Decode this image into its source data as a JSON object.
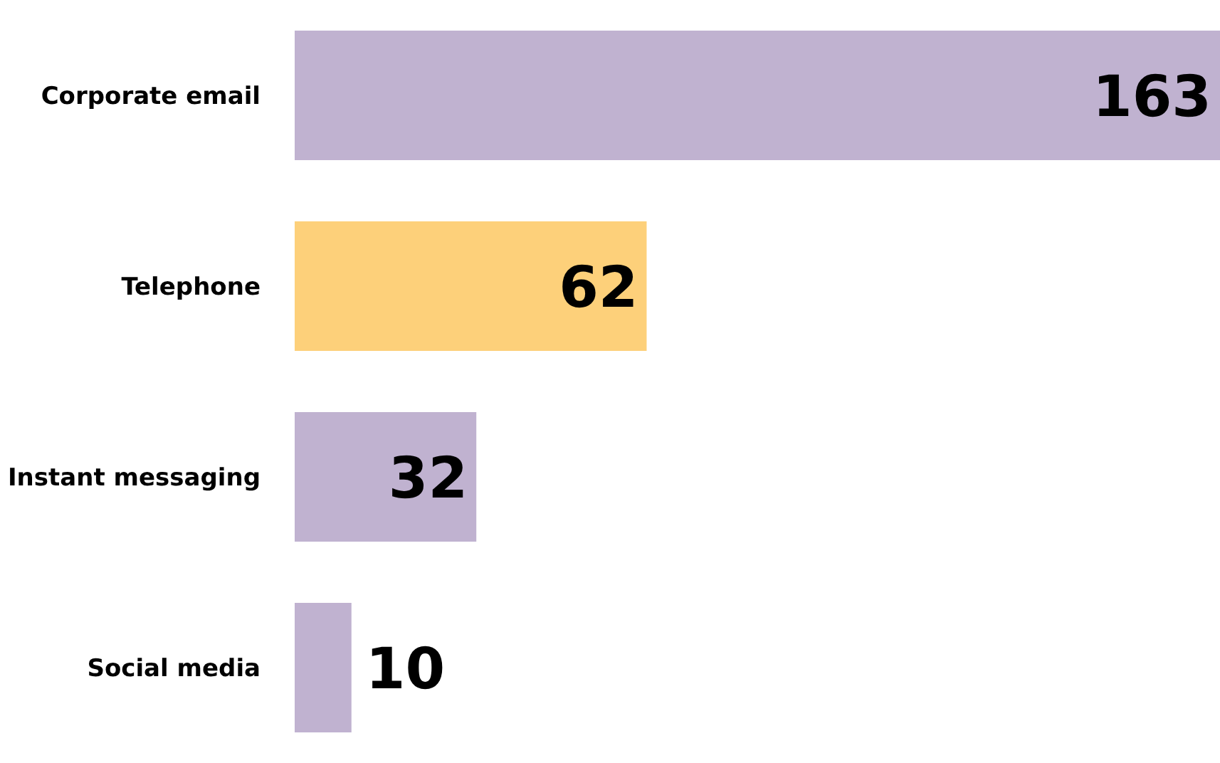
{
  "chart_data": {
    "type": "bar",
    "orientation": "horizontal",
    "categories": [
      "Corporate email",
      "Telephone",
      "Instant messaging",
      "Social media"
    ],
    "values": [
      163,
      62,
      32,
      10
    ],
    "colors": [
      "#c0b2d0",
      "#fdd07a",
      "#c0b2d0",
      "#c0b2d0"
    ],
    "data_labels": true
  }
}
